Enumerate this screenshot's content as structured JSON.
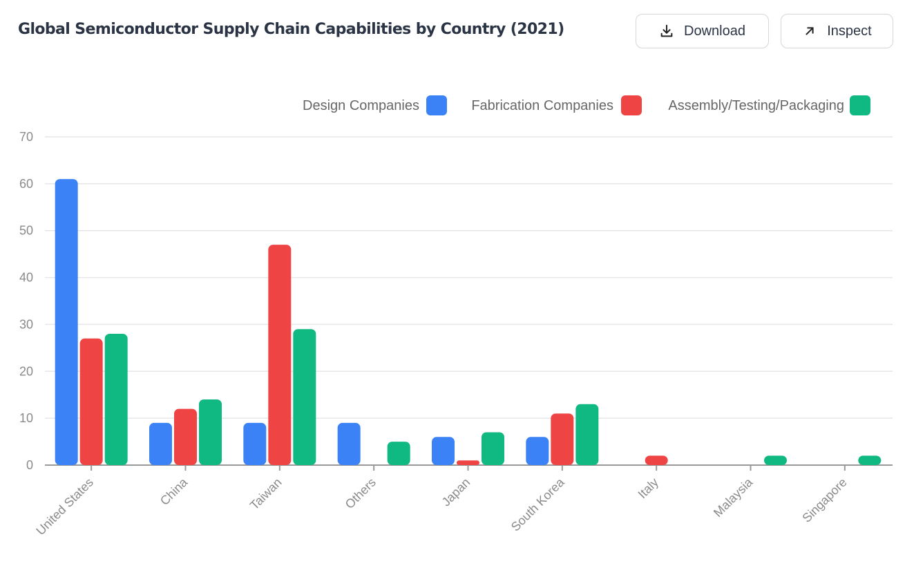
{
  "header": {
    "title": "Global Semiconductor Supply Chain Capabilities by Country (2021)",
    "download_label": "Download",
    "inspect_label": "Inspect"
  },
  "chart_data": {
    "type": "bar",
    "title": "Global Semiconductor Supply Chain Capabilities by Country (2021)",
    "categories": [
      "United States",
      "China",
      "Taiwan",
      "Others",
      "Japan",
      "South Korea",
      "Italy",
      "Malaysia",
      "Singapore"
    ],
    "series": [
      {
        "name": "Design Companies",
        "color": "#3b82f6",
        "values": [
          61,
          9,
          9,
          9,
          6,
          6,
          0,
          0,
          0
        ]
      },
      {
        "name": "Fabrication Companies",
        "color": "#ef4444",
        "values": [
          27,
          12,
          47,
          0,
          1,
          11,
          2,
          0,
          0
        ]
      },
      {
        "name": "Assembly/Testing/Packaging",
        "color": "#10b981",
        "values": [
          28,
          14,
          29,
          5,
          7,
          13,
          0,
          2,
          2
        ]
      }
    ],
    "yticks": [
      0,
      10,
      20,
      30,
      40,
      50,
      60,
      70
    ],
    "ylim": [
      0,
      70
    ],
    "xlabel": "",
    "ylabel": "",
    "grid": true,
    "legend_position": "top-right"
  }
}
